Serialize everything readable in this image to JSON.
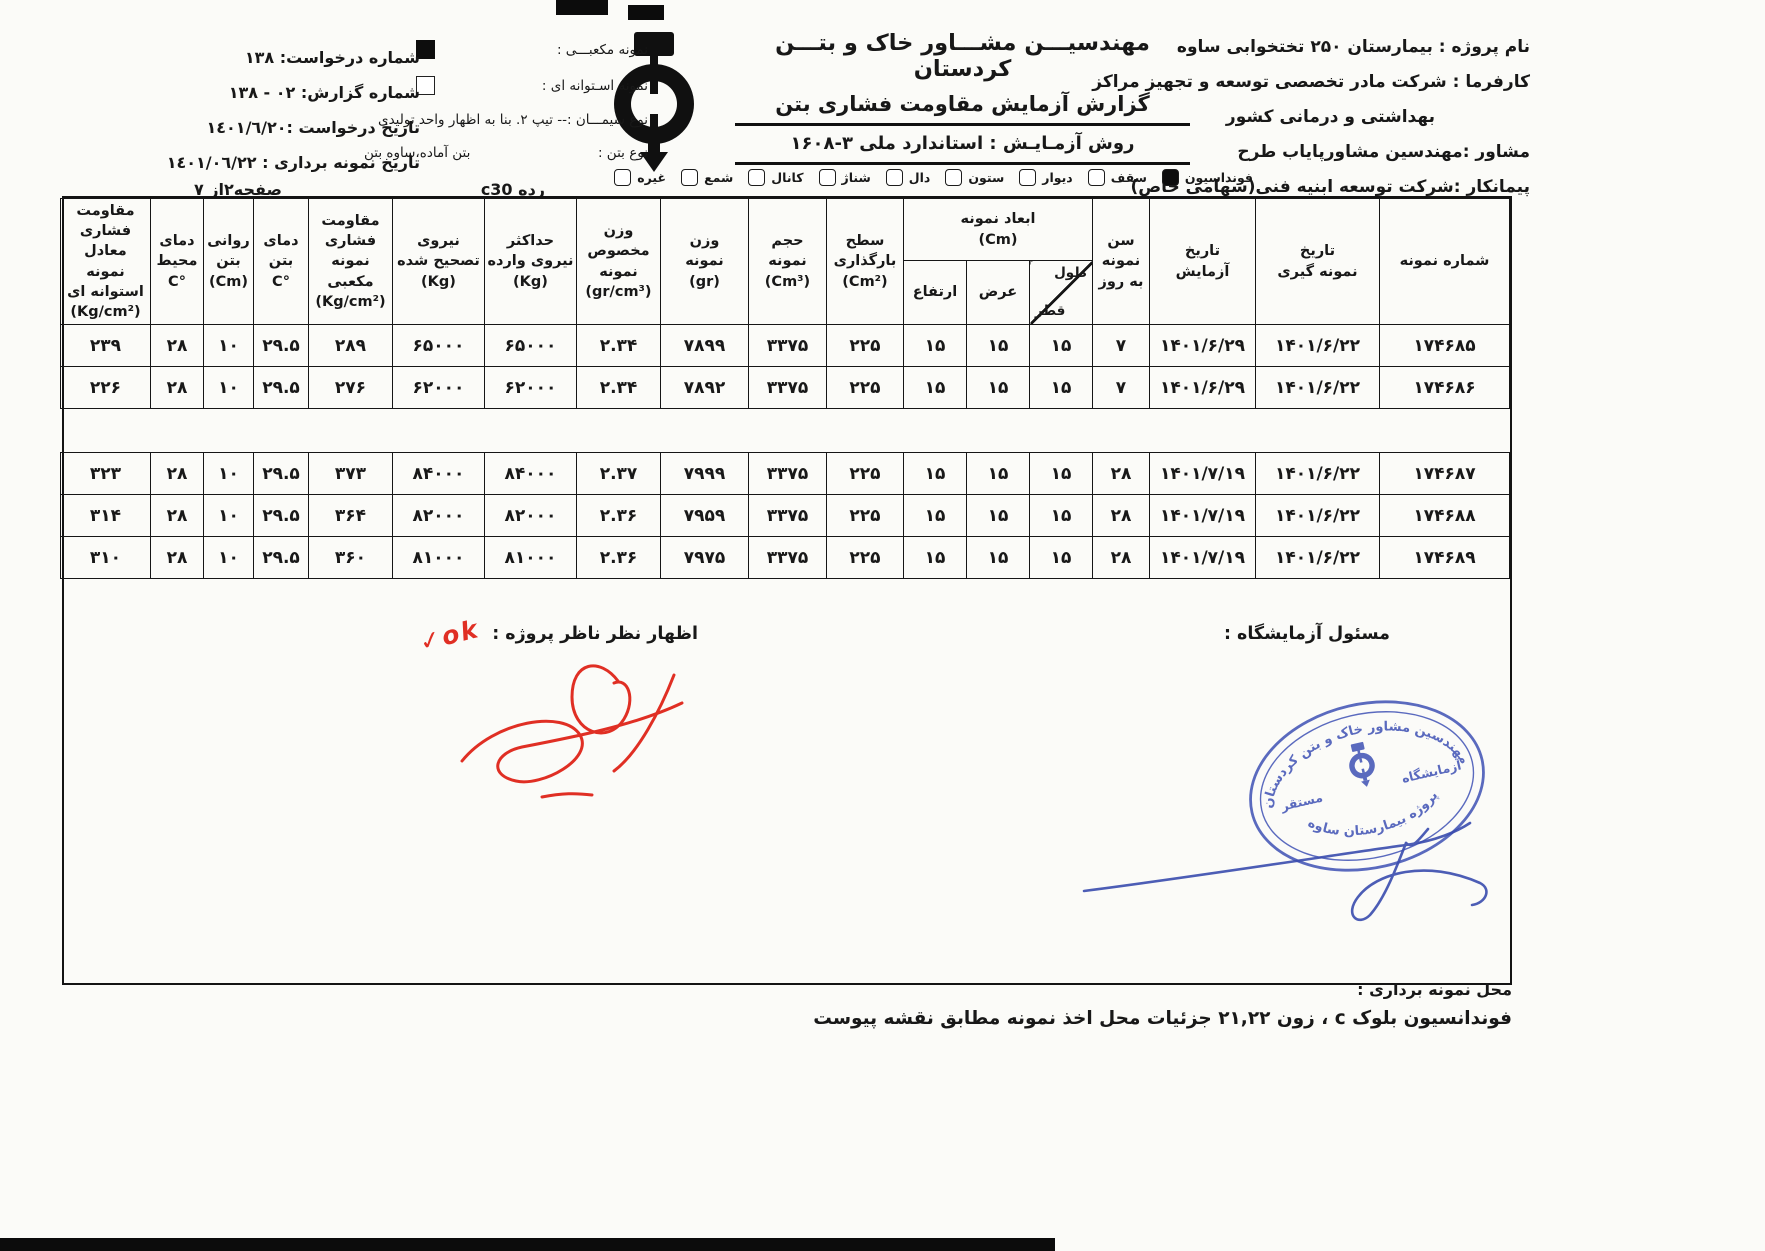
{
  "header": {
    "right": {
      "project": "نام پروژه : بیمارستان ۲۵۰ تختخوابی ساوه",
      "client1": "کارفرما : شرکت مادر تخصصی توسعه و تجهیز مراکز",
      "client2": "بهداشتی و درمانی کشور",
      "consultant": "مشاور :مهندسین مشاورپایاب طرح",
      "contractor": "پیمانکار :شرکت توسعه ابنیه فنی(سهامی خاص)"
    },
    "center": {
      "company": "مهندسیـــن مشـــاور خاک و بتـــن کردستان",
      "title": "گزارش آزمایش مقاومت فشاری بتن",
      "method": "روش آزمـایـش : استاندارد ملی ۳-۱۶۰۸"
    },
    "samples": {
      "cube_label": "نمونه مکعبـــی :",
      "cube_checked": true,
      "cylinder_label": "نمونه اسـتوانه ای :",
      "cylinder_checked": false,
      "cement_line": "نوع سیمـــان :-- تیپ ۲. بنا به اظهار واحد تولیدی",
      "concrete_label": "نوع بتن :",
      "concrete_value": "بتن آماده،ساوه بتن"
    },
    "left": {
      "request_no": "شماره درخواست: ۱۳۸",
      "report_no": "شماره گزارش: ۰۲ - ۱۳۸",
      "request_date": "تاریخ درخواست :۱٤۰۱/٦/۲۰",
      "sampling_date": "تاریخ نمونه برداری : ۱٤۰۱/۰٦/۲۲",
      "grade": "رده  c30",
      "page": "صفحه۲از ۷"
    },
    "usage_checkboxes": [
      {
        "label": "فونداسیون",
        "checked": true
      },
      {
        "label": "سقف",
        "checked": false
      },
      {
        "label": "دیوار",
        "checked": false
      },
      {
        "label": "ستون",
        "checked": false
      },
      {
        "label": "دال",
        "checked": false
      },
      {
        "label": "شناژ",
        "checked": false
      },
      {
        "label": "کانال",
        "checked": false
      },
      {
        "label": "شمع",
        "checked": false
      },
      {
        "label": "غیره",
        "checked": false
      }
    ]
  },
  "table": {
    "headers": {
      "sample_no": "شماره نمونه",
      "sampling_date": "تاریخ\nنمونه گیری",
      "test_date": "تاریخ\nآزمایش",
      "age": "سن\nنمونه\nبه روز",
      "dims_group": "ابعاد نمونه\n(Cm)",
      "dim_length": "طول",
      "dim_diameter": "قطر",
      "dim_width": "عرض",
      "dim_height": "ارتفاع",
      "load_area": "سطح\nبارگذاری\n(Cm²)",
      "volume": "حجم\nنمونه\n(Cm³)",
      "weight": "وزن\nنمونه\n(gr)",
      "density": "وزن\nمخصوص\nنمونه\n(gr/cm³)",
      "max_force": "حداکثر\nنیروی وارده\n(Kg)",
      "corrected_force": "نیروی\nتصحیح شده\n(Kg)",
      "cube_strength": "مقاومت\nفشاری\nنمونه مکعبی\n(Kg/cm²)",
      "concrete_temp": "دمای\nبتن\n°C",
      "slump": "روانی\nبتن\n(Cm)",
      "ambient_temp": "دمای\nمحیط\n°C",
      "cyl_strength": "مقاومت فشاری\nمعادل نمونه\nاستوانه ای\n(Kg/cm²)"
    },
    "gap_after_index": 1,
    "rows": [
      [
        "۱۷۴۶۸۵",
        "۱۴۰۱/۶/۲۲",
        "۱۴۰۱/۶/۲۹",
        "۷",
        "۱۵",
        "۱۵",
        "۱۵",
        "۲۲۵",
        "۳۳۷۵",
        "۷۸۹۹",
        "۲.۳۴",
        "۶۵۰۰۰",
        "۶۵۰۰۰",
        "۲۸۹",
        "۲۹.۵",
        "۱۰",
        "۲۸",
        "۲۳۹"
      ],
      [
        "۱۷۴۶۸۶",
        "۱۴۰۱/۶/۲۲",
        "۱۴۰۱/۶/۲۹",
        "۷",
        "۱۵",
        "۱۵",
        "۱۵",
        "۲۲۵",
        "۳۳۷۵",
        "۷۸۹۲",
        "۲.۳۴",
        "۶۲۰۰۰",
        "۶۲۰۰۰",
        "۲۷۶",
        "۲۹.۵",
        "۱۰",
        "۲۸",
        "۲۲۶"
      ],
      [
        "۱۷۴۶۸۷",
        "۱۴۰۱/۶/۲۲",
        "۱۴۰۱/۷/۱۹",
        "۲۸",
        "۱۵",
        "۱۵",
        "۱۵",
        "۲۲۵",
        "۳۳۷۵",
        "۷۹۹۹",
        "۲.۳۷",
        "۸۴۰۰۰",
        "۸۴۰۰۰",
        "۳۷۳",
        "۲۹.۵",
        "۱۰",
        "۲۸",
        "۳۲۳"
      ],
      [
        "۱۷۴۶۸۸",
        "۱۴۰۱/۶/۲۲",
        "۱۴۰۱/۷/۱۹",
        "۲۸",
        "۱۵",
        "۱۵",
        "۱۵",
        "۲۲۵",
        "۳۳۷۵",
        "۷۹۵۹",
        "۲.۳۶",
        "۸۲۰۰۰",
        "۸۲۰۰۰",
        "۳۶۴",
        "۲۹.۵",
        "۱۰",
        "۲۸",
        "۳۱۴"
      ],
      [
        "۱۷۴۶۸۹",
        "۱۴۰۱/۶/۲۲",
        "۱۴۰۱/۷/۱۹",
        "۲۸",
        "۱۵",
        "۱۵",
        "۱۵",
        "۲۲۵",
        "۳۳۷۵",
        "۷۹۷۵",
        "۲.۳۶",
        "۸۱۰۰۰",
        "۸۱۰۰۰",
        "۳۶۰",
        "۲۹.۵",
        "۱۰",
        "۲۸",
        "۳۱۰"
      ]
    ]
  },
  "footer": {
    "supervisor_label": "اظهار نظر ناظر پروژه :",
    "supervisor_note": "ok✓",
    "lab_label": "مسئول آزمایشگاه :",
    "stamp": {
      "arc_top": "مهندسین مشاور خاک و بتن کردستان",
      "middle_right": "آزمایشگاه",
      "middle_left": "مستقر",
      "arc_bottom": "پروژه بیمارستان ساوه"
    },
    "location_label": "محل نمونه برداری :",
    "location_value": "فوندانسیون بلوک c ، زون ۲۱,۲۲ جزئیات محل اخذ نمونه مطابق نقشه پیوست"
  }
}
